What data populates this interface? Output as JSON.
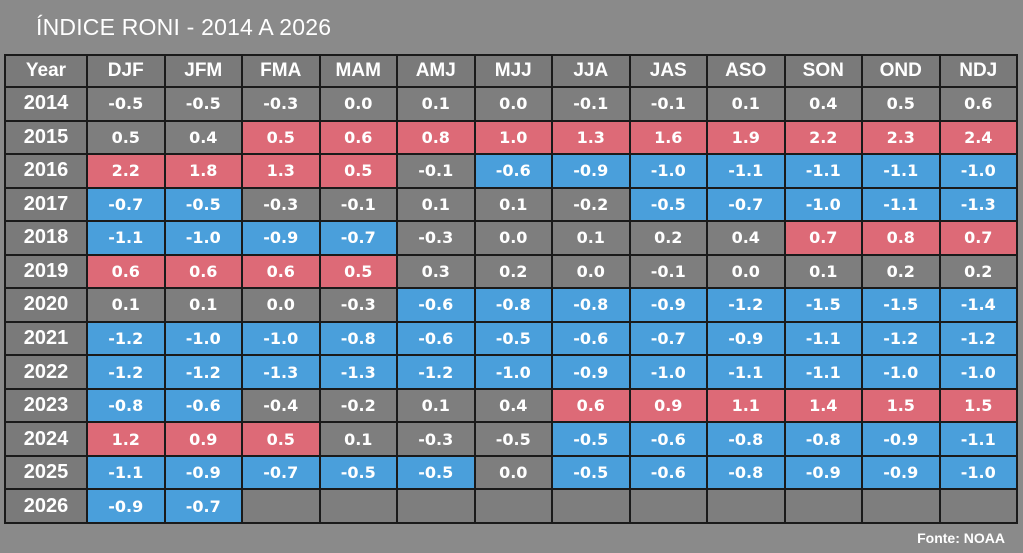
{
  "title": "ÍNDICE RONI - 2014 A 2026",
  "source": "Fonte: NOAA",
  "colors": {
    "el_nino": "#dd6a77",
    "la_nina": "#4a9fdb",
    "neutral": "#7e7e7e",
    "background": "#8a8a8a",
    "border": "#1a1a1a"
  },
  "chart_data": {
    "type": "table",
    "title": "ÍNDICE RONI - 2014 A 2026",
    "columns": [
      "Year",
      "DJF",
      "JFM",
      "FMA",
      "MAM",
      "AMJ",
      "MJJ",
      "JJA",
      "JAS",
      "ASO",
      "SON",
      "OND",
      "NDJ"
    ],
    "thresholds": {
      "warm": 0.5,
      "cold": -0.5
    },
    "rows": [
      {
        "year": "2014",
        "values": [
          "-0.5",
          "-0.5",
          "-0.3",
          "0.0",
          "0.1",
          "0.0",
          "-0.1",
          "-0.1",
          "0.1",
          "0.4",
          "0.5",
          "0.6"
        ],
        "status": [
          "n",
          "n",
          "n",
          "n",
          "n",
          "n",
          "n",
          "n",
          "n",
          "n",
          "n",
          "n"
        ]
      },
      {
        "year": "2015",
        "values": [
          "0.5",
          "0.4",
          "0.5",
          "0.6",
          "0.8",
          "1.0",
          "1.3",
          "1.6",
          "1.9",
          "2.2",
          "2.3",
          "2.4"
        ],
        "status": [
          "n",
          "n",
          "p",
          "p",
          "p",
          "p",
          "p",
          "p",
          "p",
          "p",
          "p",
          "p"
        ]
      },
      {
        "year": "2016",
        "values": [
          "2.2",
          "1.8",
          "1.3",
          "0.5",
          "-0.1",
          "-0.6",
          "-0.9",
          "-1.0",
          "-1.1",
          "-1.1",
          "-1.1",
          "-1.0"
        ],
        "status": [
          "p",
          "p",
          "p",
          "p",
          "n",
          "c",
          "c",
          "c",
          "c",
          "c",
          "c",
          "c"
        ]
      },
      {
        "year": "2017",
        "values": [
          "-0.7",
          "-0.5",
          "-0.3",
          "-0.1",
          "0.1",
          "0.1",
          "-0.2",
          "-0.5",
          "-0.7",
          "-1.0",
          "-1.1",
          "-1.3"
        ],
        "status": [
          "c",
          "c",
          "n",
          "n",
          "n",
          "n",
          "n",
          "c",
          "c",
          "c",
          "c",
          "c"
        ]
      },
      {
        "year": "2018",
        "values": [
          "-1.1",
          "-1.0",
          "-0.9",
          "-0.7",
          "-0.3",
          "0.0",
          "0.1",
          "0.2",
          "0.4",
          "0.7",
          "0.8",
          "0.7"
        ],
        "status": [
          "c",
          "c",
          "c",
          "c",
          "n",
          "n",
          "n",
          "n",
          "n",
          "p",
          "p",
          "p"
        ]
      },
      {
        "year": "2019",
        "values": [
          "0.6",
          "0.6",
          "0.6",
          "0.5",
          "0.3",
          "0.2",
          "0.0",
          "-0.1",
          "0.0",
          "0.1",
          "0.2",
          "0.2"
        ],
        "status": [
          "p",
          "p",
          "p",
          "p",
          "n",
          "n",
          "n",
          "n",
          "n",
          "n",
          "n",
          "n"
        ]
      },
      {
        "year": "2020",
        "values": [
          "0.1",
          "0.1",
          "0.0",
          "-0.3",
          "-0.6",
          "-0.8",
          "-0.8",
          "-0.9",
          "-1.2",
          "-1.5",
          "-1.5",
          "-1.4"
        ],
        "status": [
          "n",
          "n",
          "n",
          "n",
          "c",
          "c",
          "c",
          "c",
          "c",
          "c",
          "c",
          "c"
        ]
      },
      {
        "year": "2021",
        "values": [
          "-1.2",
          "-1.0",
          "-1.0",
          "-0.8",
          "-0.6",
          "-0.5",
          "-0.6",
          "-0.7",
          "-0.9",
          "-1.1",
          "-1.2",
          "-1.2"
        ],
        "status": [
          "c",
          "c",
          "c",
          "c",
          "c",
          "c",
          "c",
          "c",
          "c",
          "c",
          "c",
          "c"
        ]
      },
      {
        "year": "2022",
        "values": [
          "-1.2",
          "-1.2",
          "-1.3",
          "-1.3",
          "-1.2",
          "-1.0",
          "-0.9",
          "-1.0",
          "-1.1",
          "-1.1",
          "-1.0",
          "-1.0"
        ],
        "status": [
          "c",
          "c",
          "c",
          "c",
          "c",
          "c",
          "c",
          "c",
          "c",
          "c",
          "c",
          "c"
        ]
      },
      {
        "year": "2023",
        "values": [
          "-0.8",
          "-0.6",
          "-0.4",
          "-0.2",
          "0.1",
          "0.4",
          "0.6",
          "0.9",
          "1.1",
          "1.4",
          "1.5",
          "1.5"
        ],
        "status": [
          "c",
          "c",
          "n",
          "n",
          "n",
          "n",
          "p",
          "p",
          "p",
          "p",
          "p",
          "p"
        ]
      },
      {
        "year": "2024",
        "values": [
          "1.2",
          "0.9",
          "0.5",
          "0.1",
          "-0.3",
          "-0.5",
          "-0.5",
          "-0.6",
          "-0.8",
          "-0.8",
          "-0.9",
          "-1.1"
        ],
        "status": [
          "p",
          "p",
          "p",
          "n",
          "n",
          "n",
          "c",
          "c",
          "c",
          "c",
          "c",
          "c"
        ]
      },
      {
        "year": "2025",
        "values": [
          "-1.1",
          "-0.9",
          "-0.7",
          "-0.5",
          "-0.5",
          "0.0",
          "-0.5",
          "-0.6",
          "-0.8",
          "-0.9",
          "-0.9",
          "-1.0"
        ],
        "status": [
          "c",
          "c",
          "c",
          "c",
          "c",
          "n",
          "c",
          "c",
          "c",
          "c",
          "c",
          "c"
        ]
      },
      {
        "year": "2026",
        "values": [
          "-0.9",
          "-0.7",
          "",
          "",
          "",
          "",
          "",
          "",
          "",
          "",
          "",
          ""
        ],
        "status": [
          "c",
          "c",
          "e",
          "e",
          "e",
          "e",
          "e",
          "e",
          "e",
          "e",
          "e",
          "e"
        ]
      }
    ]
  }
}
